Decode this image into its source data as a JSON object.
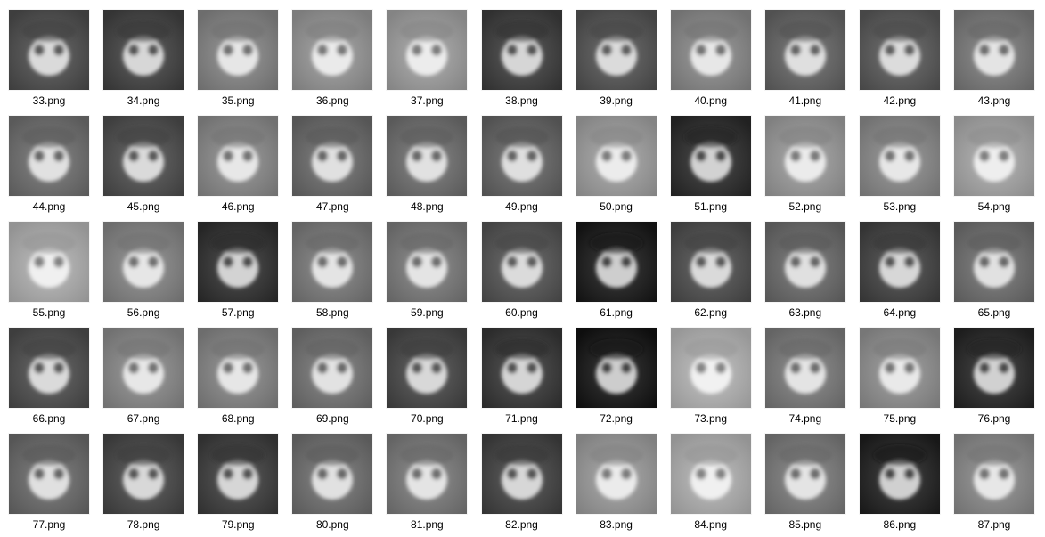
{
  "files": [
    {
      "name": "33.png",
      "tone": 0.35
    },
    {
      "name": "34.png",
      "tone": 0.3
    },
    {
      "name": "35.png",
      "tone": 0.6
    },
    {
      "name": "36.png",
      "tone": 0.68
    },
    {
      "name": "37.png",
      "tone": 0.72
    },
    {
      "name": "38.png",
      "tone": 0.28
    },
    {
      "name": "39.png",
      "tone": 0.38
    },
    {
      "name": "40.png",
      "tone": 0.62
    },
    {
      "name": "41.png",
      "tone": 0.45
    },
    {
      "name": "42.png",
      "tone": 0.4
    },
    {
      "name": "43.png",
      "tone": 0.55
    },
    {
      "name": "44.png",
      "tone": 0.5
    },
    {
      "name": "45.png",
      "tone": 0.35
    },
    {
      "name": "46.png",
      "tone": 0.62
    },
    {
      "name": "47.png",
      "tone": 0.48
    },
    {
      "name": "48.png",
      "tone": 0.5
    },
    {
      "name": "49.png",
      "tone": 0.45
    },
    {
      "name": "50.png",
      "tone": 0.72
    },
    {
      "name": "51.png",
      "tone": 0.2
    },
    {
      "name": "52.png",
      "tone": 0.7
    },
    {
      "name": "53.png",
      "tone": 0.62
    },
    {
      "name": "54.png",
      "tone": 0.76
    },
    {
      "name": "55.png",
      "tone": 0.8
    },
    {
      "name": "56.png",
      "tone": 0.6
    },
    {
      "name": "57.png",
      "tone": 0.22
    },
    {
      "name": "58.png",
      "tone": 0.55
    },
    {
      "name": "59.png",
      "tone": 0.55
    },
    {
      "name": "60.png",
      "tone": 0.38
    },
    {
      "name": "61.png",
      "tone": 0.12
    },
    {
      "name": "62.png",
      "tone": 0.35
    },
    {
      "name": "63.png",
      "tone": 0.48
    },
    {
      "name": "64.png",
      "tone": 0.3
    },
    {
      "name": "65.png",
      "tone": 0.5
    },
    {
      "name": "66.png",
      "tone": 0.35
    },
    {
      "name": "67.png",
      "tone": 0.62
    },
    {
      "name": "68.png",
      "tone": 0.6
    },
    {
      "name": "69.png",
      "tone": 0.52
    },
    {
      "name": "70.png",
      "tone": 0.32
    },
    {
      "name": "71.png",
      "tone": 0.25
    },
    {
      "name": "72.png",
      "tone": 0.1
    },
    {
      "name": "73.png",
      "tone": 0.82
    },
    {
      "name": "74.png",
      "tone": 0.55
    },
    {
      "name": "75.png",
      "tone": 0.65
    },
    {
      "name": "76.png",
      "tone": 0.18
    },
    {
      "name": "77.png",
      "tone": 0.48
    },
    {
      "name": "78.png",
      "tone": 0.32
    },
    {
      "name": "79.png",
      "tone": 0.28
    },
    {
      "name": "80.png",
      "tone": 0.5
    },
    {
      "name": "81.png",
      "tone": 0.55
    },
    {
      "name": "82.png",
      "tone": 0.3
    },
    {
      "name": "83.png",
      "tone": 0.7
    },
    {
      "name": "84.png",
      "tone": 0.8
    },
    {
      "name": "85.png",
      "tone": 0.55
    },
    {
      "name": "86.png",
      "tone": 0.15
    },
    {
      "name": "87.png",
      "tone": 0.62
    }
  ]
}
